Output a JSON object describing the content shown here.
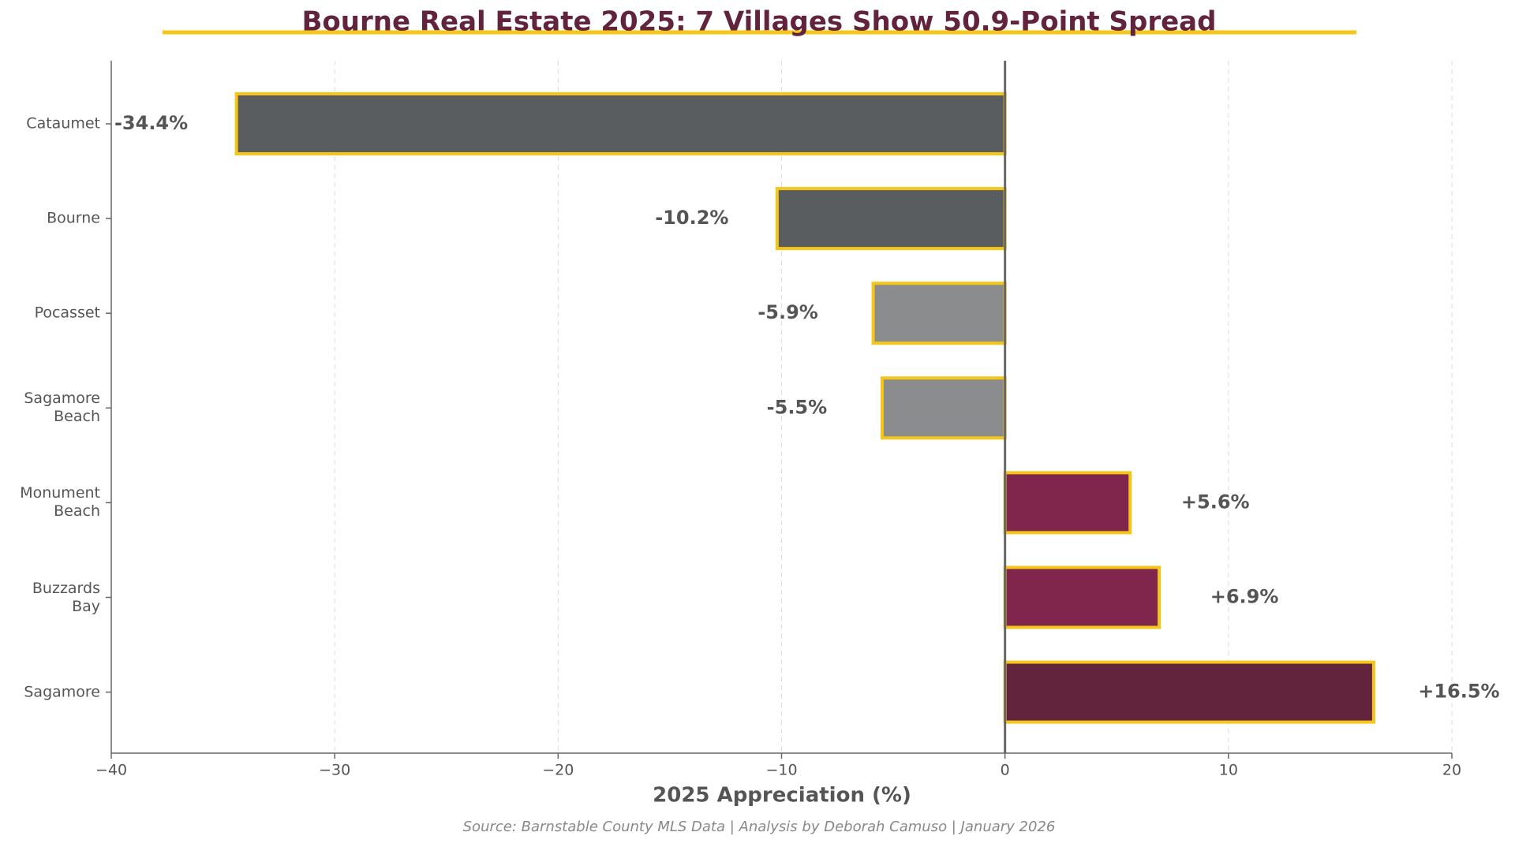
{
  "chart_data": {
    "type": "bar",
    "orientation": "horizontal",
    "title": "Bourne Real Estate 2025: 7 Villages Show 50.9-Point Spread",
    "x_label": "2025 Appreciation (%)",
    "source": "Source: Barnstable County MLS Data | Analysis by Deborah Camuso | January 2026",
    "categories": [
      "Cataumet",
      "Bourne",
      "Pocasset",
      "Sagamore\nBeach",
      "Monument\nBeach",
      "Buzzards\nBay",
      "Sagamore"
    ],
    "values": [
      -34.4,
      -10.2,
      -5.9,
      -5.5,
      5.6,
      6.9,
      16.5
    ],
    "value_labels": [
      "-34.4%",
      "-10.2%",
      "-5.9%",
      "-5.5%",
      "+5.6%",
      "+6.9%",
      "+16.5%"
    ],
    "colors": [
      "#5a5d60",
      "#5a5d60",
      "#8a8c8e",
      "#8a8c8e",
      "#80264d",
      "#80264d",
      "#62233d"
    ],
    "edge_color": "#f5c518",
    "xlim": [
      -40,
      20
    ],
    "xticks": [
      {
        "value": -40,
        "label": "−40"
      },
      {
        "value": -30,
        "label": "−30"
      },
      {
        "value": -20,
        "label": "−20"
      },
      {
        "value": -10,
        "label": "−10"
      },
      0,
      10,
      20
    ],
    "grid": true
  }
}
